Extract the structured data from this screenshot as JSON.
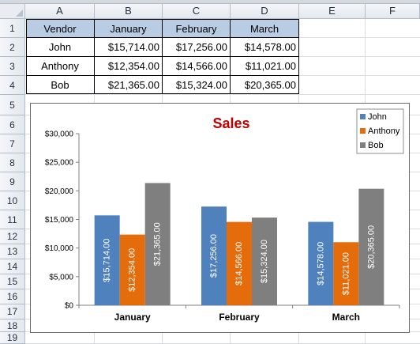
{
  "columns": [
    "A",
    "B",
    "C",
    "D",
    "E",
    "F"
  ],
  "rows": [
    "1",
    "2",
    "3",
    "4",
    "5",
    "6",
    "7",
    "8",
    "9",
    "10",
    "11",
    "12",
    "13",
    "14",
    "15",
    "16",
    "17",
    "18",
    "19"
  ],
  "table": {
    "headers": [
      "Vendor",
      "January",
      "February",
      "March"
    ],
    "rows": [
      [
        "John",
        "$15,714.00",
        "$17,256.00",
        "$14,578.00"
      ],
      [
        "Anthony",
        "$12,354.00",
        "$14,566.00",
        "$11,021.00"
      ],
      [
        "Bob",
        "$21,365.00",
        "$15,324.00",
        "$20,365.00"
      ]
    ]
  },
  "chart_data": {
    "type": "bar",
    "title": "Sales",
    "title_color": "#c00000",
    "categories": [
      "January",
      "February",
      "March"
    ],
    "series": [
      {
        "name": "John",
        "color": "#4f81bd",
        "values": [
          15714,
          17256,
          14578
        ],
        "labels": [
          "$15,714.00",
          "$17,256.00",
          "$14,578.00"
        ]
      },
      {
        "name": "Anthony",
        "color": "#e46c0a",
        "values": [
          12354,
          14566,
          11021
        ],
        "labels": [
          "$12,354.00",
          "$14,566.00",
          "$11,021.00"
        ]
      },
      {
        "name": "Bob",
        "color": "#7f7f7f",
        "values": [
          21365,
          15324,
          20365
        ],
        "labels": [
          "$21,365.00",
          "$15,324.00",
          "$20,365.00"
        ]
      }
    ],
    "ylim": [
      0,
      30000
    ],
    "yticks": [
      0,
      5000,
      10000,
      15000,
      20000,
      25000,
      30000
    ],
    "ytick_labels": [
      "$0",
      "$5,000",
      "$10,000",
      "$15,000",
      "$20,000",
      "$25,000",
      "$30,000"
    ],
    "xlabel": "",
    "ylabel": "",
    "legend": "top-right",
    "grid": false
  }
}
